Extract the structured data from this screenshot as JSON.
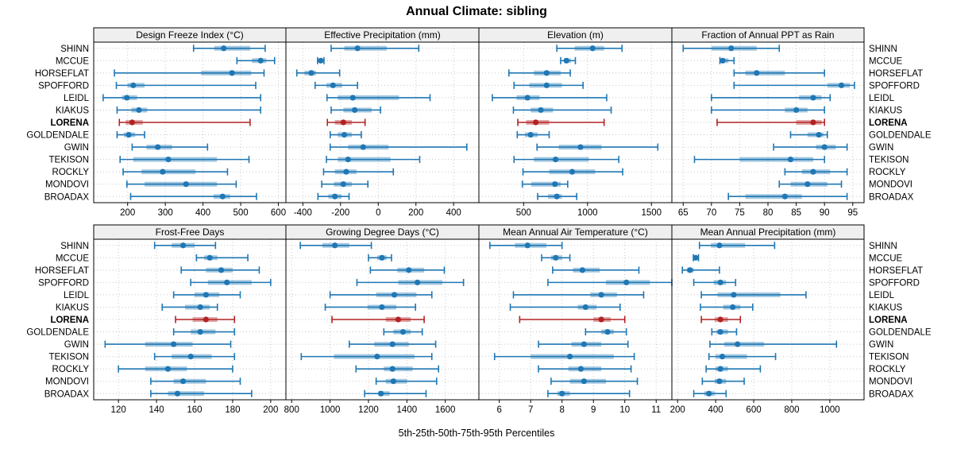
{
  "chart_data": {
    "type": "dotplot",
    "title": "Annual Climate: sibling",
    "caption": "5th-25th-50th-75th-95th Percentiles",
    "percentiles": [
      5,
      25,
      50,
      75,
      95
    ],
    "legend_position": "none",
    "grid": "dotted",
    "stations": [
      "SHINN",
      "MCCUE",
      "HORSEFLAT",
      "SPOFFORD",
      "LEIDL",
      "KIAKUS",
      "LORENA",
      "GOLDENDALE",
      "GWIN",
      "TEKISON",
      "ROCKLY",
      "MONDOVI",
      "BROADAX"
    ],
    "highlighted_station": "LORENA",
    "colors": {
      "series": "#1f77b4",
      "highlight": "#b22222",
      "header_fill": "#efefef",
      "grid": "#c8c8c8",
      "border": "#000000"
    },
    "panels": [
      {
        "title": "Design Freeze Index (°C)",
        "row": 0,
        "col": 0,
        "xlim": [
          110,
          620
        ],
        "ticks": [
          200,
          300,
          400,
          500,
          600
        ],
        "values": [
          [
            375,
            430,
            455,
            525,
            565
          ],
          [
            490,
            530,
            553,
            568,
            590
          ],
          [
            165,
            395,
            477,
            528,
            562
          ],
          [
            170,
            200,
            215,
            245,
            540
          ],
          [
            135,
            185,
            198,
            225,
            553
          ],
          [
            172,
            210,
            230,
            252,
            553
          ],
          [
            178,
            195,
            212,
            240,
            525
          ],
          [
            172,
            190,
            203,
            220,
            245
          ],
          [
            212,
            250,
            280,
            318,
            412
          ],
          [
            180,
            215,
            308,
            437,
            522
          ],
          [
            188,
            237,
            293,
            380,
            465
          ],
          [
            198,
            245,
            355,
            437,
            488
          ],
          [
            208,
            428,
            452,
            472,
            542
          ]
        ]
      },
      {
        "title": "Effective Precipitation (mm)",
        "row": 0,
        "col": 1,
        "xlim": [
          -490,
          534
        ],
        "ticks": [
          -400,
          -200,
          0,
          200,
          400
        ],
        "values": [
          [
            -250,
            -180,
            -110,
            45,
            215
          ],
          [
            -322,
            -312,
            -305,
            -297,
            -288
          ],
          [
            -432,
            -392,
            -355,
            -330,
            -205
          ],
          [
            -335,
            -275,
            -240,
            -192,
            -110
          ],
          [
            -272,
            -215,
            -135,
            110,
            275
          ],
          [
            -250,
            -185,
            -125,
            -35,
            12
          ],
          [
            -270,
            -230,
            -185,
            -140,
            -70
          ],
          [
            -255,
            -215,
            -180,
            -140,
            -90
          ],
          [
            -255,
            -160,
            -80,
            55,
            470
          ],
          [
            -275,
            -215,
            -160,
            65,
            220
          ],
          [
            -290,
            -230,
            -170,
            -115,
            80
          ],
          [
            -300,
            -235,
            -185,
            -140,
            -55
          ],
          [
            -320,
            -265,
            -230,
            -195,
            -155
          ]
        ]
      },
      {
        "title": "Elevation (m)",
        "row": 0,
        "col": 2,
        "xlim": [
          150,
          1660
        ],
        "ticks": [
          500,
          1000,
          1500
        ],
        "values": [
          [
            760,
            900,
            1040,
            1130,
            1270
          ],
          [
            790,
            815,
            835,
            870,
            905
          ],
          [
            385,
            580,
            680,
            790,
            865
          ],
          [
            425,
            545,
            680,
            800,
            965
          ],
          [
            255,
            445,
            530,
            625,
            1150
          ],
          [
            420,
            555,
            635,
            730,
            1185
          ],
          [
            455,
            520,
            595,
            700,
            1130
          ],
          [
            450,
            510,
            555,
            610,
            700
          ],
          [
            605,
            775,
            945,
            1110,
            1550
          ],
          [
            425,
            580,
            750,
            1010,
            1245
          ],
          [
            495,
            700,
            880,
            1060,
            1275
          ],
          [
            490,
            560,
            745,
            790,
            845
          ],
          [
            610,
            690,
            760,
            800,
            915
          ]
        ]
      },
      {
        "title": "Fraction of Annual PPT as Rain",
        "row": 0,
        "col": 3,
        "xlim": [
          63,
          97
        ],
        "ticks": [
          65,
          70,
          75,
          80,
          85,
          90,
          95
        ],
        "values": [
          [
            65,
            70,
            73.5,
            78,
            82
          ],
          [
            71.5,
            71.8,
            72,
            73,
            74
          ],
          [
            74,
            76,
            78,
            83,
            90
          ],
          [
            74,
            90.5,
            93,
            94.5,
            95.3
          ],
          [
            70,
            85.5,
            88,
            89.5,
            91
          ],
          [
            70,
            83,
            85,
            87,
            90
          ],
          [
            71,
            85,
            88,
            89.5,
            90
          ],
          [
            84,
            87,
            89,
            89.8,
            90.5
          ],
          [
            81,
            88.5,
            90,
            92,
            94
          ],
          [
            67,
            75,
            84,
            88,
            90
          ],
          [
            83,
            86,
            88,
            91,
            94
          ],
          [
            82,
            84,
            87,
            90.5,
            93
          ],
          [
            73,
            76,
            83,
            86,
            94
          ]
        ]
      },
      {
        "title": "Frost-Free Days",
        "row": 1,
        "col": 0,
        "xlim": [
          107,
          208
        ],
        "ticks": [
          120,
          140,
          160,
          180,
          200
        ],
        "values": [
          [
            139,
            148,
            154,
            160,
            171
          ],
          [
            161,
            165,
            168,
            172,
            188
          ],
          [
            153,
            166,
            174,
            180,
            194
          ],
          [
            158,
            167,
            177,
            190,
            200
          ],
          [
            149,
            160,
            166,
            173,
            184
          ],
          [
            143,
            155,
            163,
            168,
            172
          ],
          [
            150,
            159,
            166,
            172,
            181
          ],
          [
            149,
            158,
            163,
            171,
            181
          ],
          [
            113,
            134,
            149,
            159,
            179
          ],
          [
            139,
            148,
            158,
            169,
            181
          ],
          [
            120,
            134,
            146,
            156,
            180
          ],
          [
            137,
            149,
            154,
            166,
            184
          ],
          [
            137,
            146,
            151,
            165,
            190
          ]
        ]
      },
      {
        "title": "Growing Degree Days (°C)",
        "row": 1,
        "col": 1,
        "xlim": [
          770,
          1775
        ],
        "ticks": [
          800,
          1000,
          1200,
          1400,
          1600
        ],
        "values": [
          [
            845,
            960,
            1025,
            1100,
            1215
          ],
          [
            1200,
            1245,
            1270,
            1295,
            1320
          ],
          [
            1210,
            1350,
            1410,
            1490,
            1595
          ],
          [
            1140,
            1355,
            1455,
            1585,
            1695
          ],
          [
            1000,
            1240,
            1335,
            1450,
            1530
          ],
          [
            975,
            1195,
            1270,
            1345,
            1445
          ],
          [
            1010,
            1290,
            1355,
            1420,
            1490
          ],
          [
            1280,
            1330,
            1380,
            1420,
            1480
          ],
          [
            1100,
            1230,
            1325,
            1410,
            1550
          ],
          [
            850,
            1020,
            1245,
            1440,
            1530
          ],
          [
            1135,
            1280,
            1325,
            1430,
            1565
          ],
          [
            1240,
            1290,
            1330,
            1400,
            1555
          ],
          [
            1180,
            1250,
            1265,
            1310,
            1500
          ]
        ]
      },
      {
        "title": "Mean Annual Air Temperature (°C)",
        "row": 1,
        "col": 2,
        "xlim": [
          5.35,
          11.5
        ],
        "ticks": [
          6,
          7,
          8,
          9,
          10,
          11
        ],
        "values": [
          [
            5.7,
            6.5,
            6.9,
            7.5,
            8.0
          ],
          [
            7.35,
            7.65,
            7.8,
            8.0,
            8.25
          ],
          [
            7.7,
            8.35,
            8.65,
            9.2,
            10.45
          ],
          [
            7.55,
            9.4,
            10.05,
            10.8,
            11.5
          ],
          [
            6.45,
            8.9,
            9.25,
            9.75,
            10.6
          ],
          [
            6.35,
            8.5,
            8.75,
            9.1,
            9.85
          ],
          [
            6.65,
            9.0,
            9.25,
            9.55,
            10.0
          ],
          [
            8.75,
            9.25,
            9.45,
            9.65,
            10.05
          ],
          [
            7.25,
            8.3,
            8.7,
            9.25,
            10.1
          ],
          [
            5.85,
            7.0,
            8.25,
            9.65,
            10.3
          ],
          [
            7.25,
            8.2,
            8.6,
            9.25,
            10.2
          ],
          [
            7.65,
            8.25,
            8.7,
            9.4,
            10.4
          ],
          [
            7.55,
            7.85,
            8.0,
            8.25,
            10.15
          ]
        ]
      },
      {
        "title": "Mean Annual Precipitation (mm)",
        "row": 1,
        "col": 3,
        "xlim": [
          170,
          1180
        ],
        "ticks": [
          200,
          400,
          600,
          800,
          1000
        ],
        "values": [
          [
            315,
            375,
            420,
            555,
            710
          ],
          [
            283,
            290,
            295,
            302,
            310
          ],
          [
            225,
            250,
            265,
            285,
            420
          ],
          [
            285,
            390,
            425,
            455,
            505
          ],
          [
            325,
            410,
            495,
            740,
            875
          ],
          [
            320,
            440,
            490,
            530,
            595
          ],
          [
            325,
            395,
            425,
            465,
            530
          ],
          [
            380,
            405,
            425,
            465,
            510
          ],
          [
            370,
            445,
            515,
            655,
            1035
          ],
          [
            365,
            400,
            435,
            565,
            715
          ],
          [
            350,
            400,
            425,
            465,
            635
          ],
          [
            330,
            395,
            420,
            455,
            550
          ],
          [
            285,
            340,
            365,
            395,
            455
          ]
        ]
      }
    ]
  }
}
